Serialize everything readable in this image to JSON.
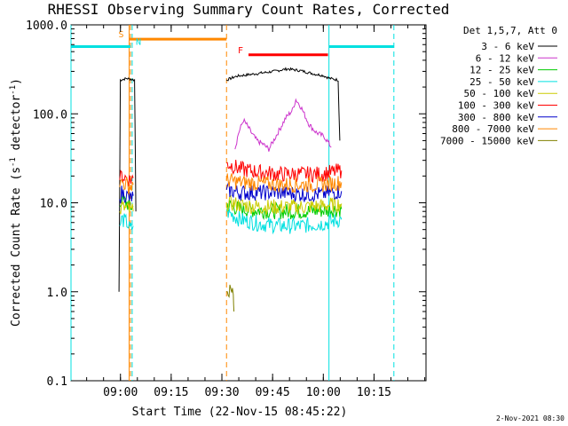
{
  "chart_data": {
    "type": "line",
    "title": "RHESSI Observing Summary Count Rates, Corrected",
    "xlabel": "Start Time (22-Nov-15 08:45:22)",
    "ylabel": "Corrected Count Rate (s⁻¹ detector⁻¹)",
    "ylabel_main": "Corrected Count Rate (s",
    "ylabel_sup1": "-1",
    "ylabel_mid": " detector",
    "ylabel_sup2": "-1",
    "ylabel_end": ")",
    "yscale": "log",
    "ylim": [
      0.1,
      1000
    ],
    "xlim_minutes": [
      0,
      105
    ],
    "ytick_labels": [
      "0.1",
      "1.0",
      "10.0",
      "100.0",
      "1000.0"
    ],
    "ytick_values": [
      0.1,
      1,
      10,
      100,
      1000
    ],
    "xtick_labels": [
      "09:00",
      "09:15",
      "09:30",
      "09:45",
      "10:00",
      "10:15"
    ],
    "xtick_minutes": [
      14.63,
      29.63,
      44.63,
      59.63,
      74.63,
      89.63
    ],
    "legend_header": "Det 1,5,7, Att 0",
    "legend_placement": "right",
    "timestamp": "2-Nov-2021 08:30",
    "series": [
      {
        "name": "3 - 6 keV",
        "color": "#000000",
        "segments": [
          [
            [
              14.2,
              1
            ],
            [
              14.6,
              240
            ],
            [
              16.5,
              250
            ],
            [
              18.8,
              240
            ],
            [
              19.2,
              8
            ]
          ],
          [
            [
              46.0,
              240
            ],
            [
              49.0,
              265
            ],
            [
              54.0,
              280
            ],
            [
              60.0,
              300
            ],
            [
              64.0,
              320
            ],
            [
              68.0,
              305
            ],
            [
              72.0,
              280
            ],
            [
              74.5,
              270
            ],
            [
              76.5,
              250
            ],
            [
              79.0,
              240
            ],
            [
              79.5,
              50
            ]
          ]
        ]
      },
      {
        "name": "6 - 12 keV",
        "color": "#cc33cc",
        "segments": [
          [
            [
              48.5,
              40
            ],
            [
              49.5,
              60
            ],
            [
              51.0,
              85
            ],
            [
              52.0,
              75
            ],
            [
              53.5,
              60
            ],
            [
              55.0,
              50
            ],
            [
              57.0,
              45
            ],
            [
              58.5,
              40
            ],
            [
              60.5,
              55
            ],
            [
              62.0,
              70
            ],
            [
              63.5,
              90
            ],
            [
              65.5,
              110
            ],
            [
              66.5,
              145
            ],
            [
              68.0,
              120
            ],
            [
              69.5,
              90
            ],
            [
              70.5,
              75
            ],
            [
              72.5,
              62
            ],
            [
              75.0,
              55
            ],
            [
              77.0,
              42
            ]
          ]
        ]
      },
      {
        "name": "12 - 25 keV",
        "color": "#00cc00",
        "segments": [
          [
            [
              14.4,
              9
            ],
            [
              15.0,
              11
            ],
            [
              16.5,
              10
            ],
            [
              17.5,
              9
            ],
            [
              18.4,
              9
            ]
          ],
          [
            [
              46.0,
              9.5
            ],
            [
              50.0,
              8.5
            ],
            [
              56.0,
              8.2
            ],
            [
              62.0,
              8.0
            ],
            [
              68.0,
              8.0
            ],
            [
              74.0,
              8.2
            ],
            [
              80.0,
              8.5
            ]
          ]
        ]
      },
      {
        "name": "25 - 50 keV",
        "color": "#00e0e0",
        "segments": [
          [
            [
              14.4,
              5.5
            ],
            [
              15.0,
              6.5
            ],
            [
              16.5,
              6.0
            ],
            [
              17.5,
              5.0
            ],
            [
              18.4,
              5.5
            ]
          ],
          [
            [
              46.0,
              8.0
            ],
            [
              50.0,
              6.5
            ],
            [
              56.0,
              5.8
            ],
            [
              62.0,
              5.5
            ],
            [
              68.0,
              5.5
            ],
            [
              74.0,
              5.8
            ],
            [
              80.0,
              6.5
            ]
          ]
        ]
      },
      {
        "name": "50 - 100 keV",
        "color": "#cccc00",
        "segments": [
          [
            [
              14.4,
              8
            ],
            [
              15.0,
              9
            ],
            [
              16.5,
              8.5
            ],
            [
              17.5,
              8
            ],
            [
              18.4,
              8
            ]
          ],
          [
            [
              46.0,
              10
            ],
            [
              50.0,
              9.5
            ],
            [
              56.0,
              9.0
            ],
            [
              62.0,
              9.0
            ],
            [
              68.0,
              9.0
            ],
            [
              74.0,
              9.2
            ],
            [
              80.0,
              9.8
            ]
          ]
        ]
      },
      {
        "name": "100 - 300 keV",
        "color": "#ff0000",
        "segments": [
          [
            [
              14.4,
              18
            ],
            [
              15.0,
              20
            ],
            [
              16.5,
              19
            ],
            [
              17.5,
              18
            ],
            [
              18.4,
              19
            ]
          ],
          [
            [
              46.0,
              28
            ],
            [
              50.0,
              24
            ],
            [
              56.0,
              22
            ],
            [
              62.0,
              21
            ],
            [
              68.0,
              21
            ],
            [
              74.0,
              21
            ],
            [
              80.0,
              23
            ]
          ]
        ]
      },
      {
        "name": "300 - 800 keV",
        "color": "#0000cc",
        "segments": [
          [
            [
              14.4,
              11
            ],
            [
              15.0,
              13
            ],
            [
              16.5,
              12
            ],
            [
              17.5,
              11
            ],
            [
              18.4,
              12
            ]
          ],
          [
            [
              46.0,
              14
            ],
            [
              50.0,
              13
            ],
            [
              56.0,
              13
            ],
            [
              62.0,
              13
            ],
            [
              68.0,
              12.5
            ],
            [
              74.0,
              12.5
            ],
            [
              80.0,
              13.5
            ]
          ]
        ]
      },
      {
        "name": "800 - 7000 keV",
        "color": "#ff8800",
        "segments": [
          [
            [
              14.4,
              15
            ],
            [
              15.0,
              17
            ],
            [
              16.5,
              16
            ],
            [
              17.5,
              15
            ],
            [
              18.4,
              16
            ]
          ],
          [
            [
              46.0,
              18
            ],
            [
              50.0,
              17
            ],
            [
              56.0,
              16.5
            ],
            [
              62.0,
              16
            ],
            [
              68.0,
              16
            ],
            [
              74.0,
              16
            ],
            [
              80.0,
              17
            ]
          ]
        ]
      },
      {
        "name": "7000 - 15000 keV",
        "color": "#808000",
        "segments": [
          [
            [
              46.0,
              1.0
            ],
            [
              48.0,
              1.0
            ],
            [
              48.2,
              0.6
            ]
          ]
        ]
      }
    ],
    "vertical_lines": [
      {
        "x_minutes": 0.0,
        "color": "#00e0e0",
        "style": "solid"
      },
      {
        "x_minutes": 18.1,
        "color": "#00e0e0",
        "style": "dashed"
      },
      {
        "x_minutes": 17.2,
        "color": "#ff8800",
        "style": "solid"
      },
      {
        "x_minutes": 17.6,
        "color": "#ff8800",
        "style": "dashed"
      },
      {
        "x_minutes": 46.0,
        "color": "#ff8800",
        "style": "dashed"
      },
      {
        "x_minutes": 76.3,
        "color": "#00e0e0",
        "style": "solid"
      },
      {
        "x_minutes": 95.5,
        "color": "#00e0e0",
        "style": "dashed"
      }
    ],
    "flag_bars": [
      {
        "label": "",
        "color": "#00e0e0",
        "x_start_minutes": 0.0,
        "x_end_minutes": 17.6,
        "y": 570
      },
      {
        "label": "S",
        "color": "#ff8800",
        "x_start_minutes": 17.2,
        "x_end_minutes": 46.0,
        "y": 690
      },
      {
        "label": "N",
        "color": "#00e0e0",
        "x_start_minutes": 18.1,
        "x_end_minutes": 18.1,
        "y": 570
      },
      {
        "label": "F",
        "color": "#ff0000",
        "x_start_minutes": 52.5,
        "x_end_minutes": 76.0,
        "y": 460
      },
      {
        "label": "",
        "color": "#00e0e0",
        "x_start_minutes": 76.3,
        "x_end_minutes": 95.5,
        "y": 570
      }
    ]
  }
}
